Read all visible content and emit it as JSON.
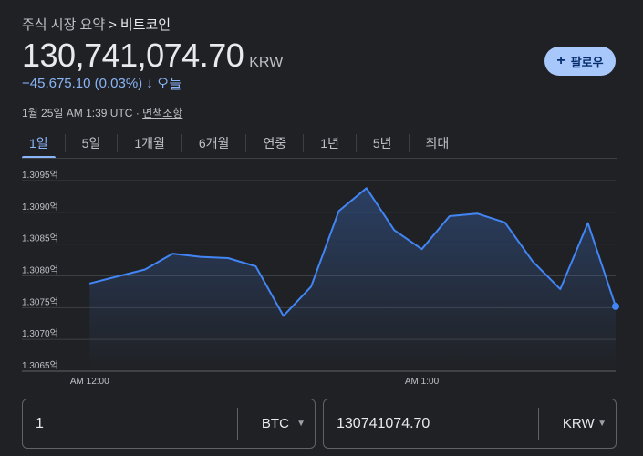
{
  "breadcrumb": {
    "parent": "주식 시장 요약",
    "separator": ">",
    "current": "비트코인"
  },
  "price": {
    "value": "130,741,074.70",
    "currency": "KRW"
  },
  "change": {
    "text": "−45,675.10 (0.03%)",
    "arrow": "↓",
    "period": "오늘"
  },
  "follow_button": {
    "label": "팔로우",
    "icon": "plus-icon"
  },
  "meta": {
    "timestamp": "1월 25일 AM 1:39 UTC",
    "separator": "·",
    "disclaimer": "면책조항"
  },
  "tabs": [
    {
      "label": "1일",
      "active": true
    },
    {
      "label": "5일",
      "active": false
    },
    {
      "label": "1개월",
      "active": false
    },
    {
      "label": "6개월",
      "active": false
    },
    {
      "label": "연중",
      "active": false
    },
    {
      "label": "1년",
      "active": false
    },
    {
      "label": "5년",
      "active": false
    },
    {
      "label": "최대",
      "active": false
    }
  ],
  "chart_data": {
    "type": "area",
    "y_tick_labels": [
      "1.3095억",
      "1.3090억",
      "1.3085억",
      "1.3080억",
      "1.3075억",
      "1.3070억",
      "1.3065억"
    ],
    "y_ticks": [
      130950000,
      130900000,
      130850000,
      130800000,
      130750000,
      130700000,
      130650000
    ],
    "ylim": [
      130650000,
      130970000
    ],
    "x_tick_labels": [
      {
        "label": "AM 12:00",
        "t": 0
      },
      {
        "label": "AM 1:00",
        "t": 60
      }
    ],
    "xlim": [
      -4,
      95
    ],
    "x": [
      0,
      10,
      15,
      20,
      25,
      30,
      35,
      40,
      45,
      50,
      55,
      60,
      65,
      70,
      75,
      80,
      85,
      90,
      95
    ],
    "values": [
      130788000,
      130810000,
      130835000,
      130830000,
      130828000,
      130815000,
      130737000,
      130783000,
      130902000,
      130938000,
      130872000,
      130842000,
      130894000,
      130898000,
      130884000,
      130823000,
      130779000,
      130883000,
      130752000
    ],
    "grid": true,
    "colors": {
      "line": "#4285f4",
      "grid": "#3c4043",
      "fill_top": "rgba(66,133,244,0.30)",
      "fill_bottom": "rgba(66,133,244,0.0)"
    }
  },
  "converter": {
    "left": {
      "value": "1",
      "unit": "BTC"
    },
    "right": {
      "value": "130741074.70",
      "unit": "KRW"
    }
  }
}
